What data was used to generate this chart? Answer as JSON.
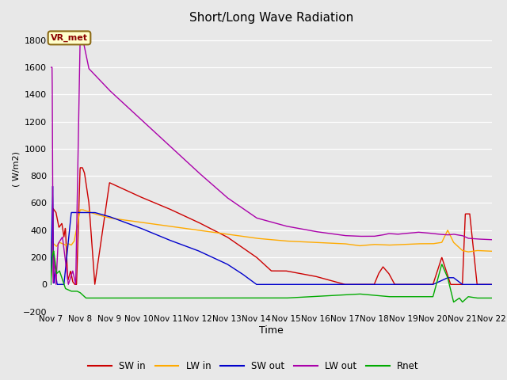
{
  "title": "Short/Long Wave Radiation",
  "xlabel": "Time",
  "ylabel": "( W/m2)",
  "ylim": [
    -200,
    1900
  ],
  "yticks": [
    -200,
    0,
    200,
    400,
    600,
    800,
    1000,
    1200,
    1400,
    1600,
    1800
  ],
  "fig_bg_color": "#e8e8e8",
  "plot_bg_color": "#e8e8e8",
  "annotation_text": "VR_met",
  "colors": {
    "SW_in": "#cc0000",
    "LW_in": "#ffaa00",
    "SW_out": "#0000cc",
    "LW_out": "#aa00aa",
    "Rnet": "#00aa00"
  },
  "legend_labels": [
    "SW in",
    "LW in",
    "SW out",
    "LW out",
    "Rnet"
  ],
  "legend_colors": [
    "#cc0000",
    "#ffaa00",
    "#0000cc",
    "#aa00aa",
    "#00aa00"
  ],
  "x_tick_labels": [
    "Nov 7",
    "Nov 8",
    "Nov 9",
    "Nov 10",
    "Nov 11",
    "Nov 12",
    "Nov 13",
    "Nov 14",
    "Nov 15",
    "Nov 16",
    "Nov 17",
    "Nov 18",
    "Nov 19",
    "Nov 20",
    "Nov 21",
    "Nov 22"
  ]
}
